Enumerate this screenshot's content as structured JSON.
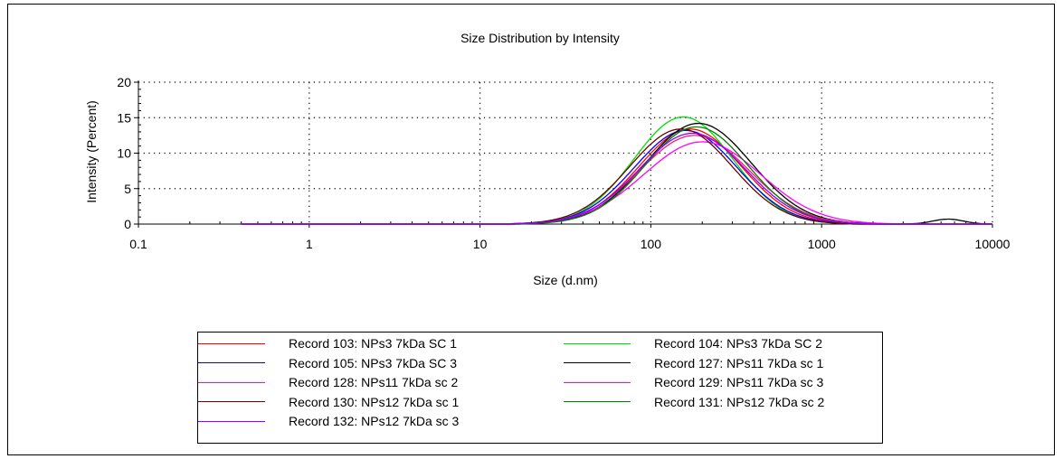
{
  "chart_data": {
    "type": "line",
    "title": "Size Distribution by Intensity",
    "xlabel": "Size (d.nm)",
    "ylabel": "Intensity (Percent)",
    "xscale": "log",
    "xlim": [
      0.1,
      10000
    ],
    "ylim": [
      0,
      20
    ],
    "xticks": [
      "0.1",
      "1",
      "10",
      "100",
      "1000",
      "10000"
    ],
    "yticks": [
      "0",
      "5",
      "10",
      "15",
      "20"
    ],
    "grid": true,
    "legend_position": "bottom",
    "series": [
      {
        "name": "Record 103: NPs3 7kDa SC 1",
        "color": "#ff0000",
        "peak_size": 170,
        "peak_intensity": 13.4,
        "width": 0.3
      },
      {
        "name": "Record 104: NPs3 7kDa SC 2",
        "color": "#00e000",
        "peak_size": 155,
        "peak_intensity": 15.1,
        "width": 0.29
      },
      {
        "name": "Record 105: NPs3 7kDa SC 3",
        "color": "#0000ff",
        "peak_size": 160,
        "peak_intensity": 13.2,
        "width": 0.3
      },
      {
        "name": "Record 127: NPs11 7kDa sc 1",
        "color": "#000000",
        "peak_size": 190,
        "peak_intensity": 14.2,
        "width": 0.31
      },
      {
        "name": "Record 128: NPs11 7kDa sc 2",
        "color": "#ff1a7a",
        "peak_size": 180,
        "peak_intensity": 12.5,
        "width": 0.32
      },
      {
        "name": "Record 129: NPs11 7kDa sc 3",
        "color": "#ff00ff",
        "peak_size": 200,
        "peak_intensity": 11.6,
        "width": 0.34
      },
      {
        "name": "Record 130: NPs12 7kDa sc 1",
        "color": "#6b0000",
        "peak_size": 150,
        "peak_intensity": 13.4,
        "width": 0.3
      },
      {
        "name": "Record 131: NPs12 7kDa sc 2",
        "color": "#008000",
        "peak_size": 185,
        "peak_intensity": 13.7,
        "width": 0.3
      },
      {
        "name": "Record 132: NPs12 7kDa sc 3",
        "color": "#8b00ff",
        "peak_size": 175,
        "peak_intensity": 12.8,
        "width": 0.31
      }
    ],
    "secondary_peak": {
      "series": "Record 127: NPs11 7kDa sc 1",
      "peak_size": 5500,
      "peak_intensity": 0.7
    }
  }
}
